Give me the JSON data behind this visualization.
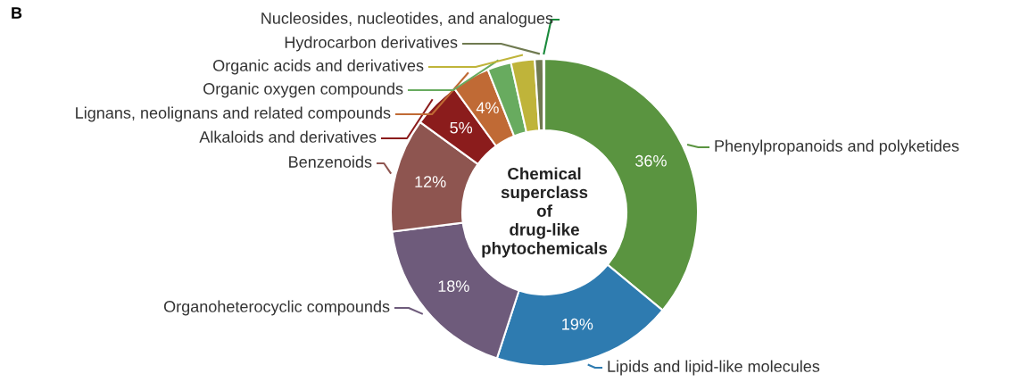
{
  "chart_data": {
    "type": "donut",
    "title": "Chemical\nsuperclass\nof\ndrug-like\nphytochemicals",
    "annotations": [
      "B"
    ],
    "categories": [
      "Phenylpropanoids and polyketides",
      "Lipids and lipid-like molecules",
      "Organoheterocyclic compounds",
      "Benzenoids",
      "Alkaloids and derivatives",
      "Lignans, neolignans and related compounds",
      "Organic oxygen compounds",
      "Organic acids and derivatives",
      "Hydrocarbon derivatives",
      "Nucleosides, nucleotides, and analogues"
    ],
    "values": [
      36,
      19,
      18,
      12,
      5,
      4,
      2.5,
      2.5,
      0.9,
      0.1
    ],
    "value_labels": [
      "36%",
      "19%",
      "18%",
      "12%",
      "5%",
      "4%",
      null,
      null,
      null,
      null
    ],
    "colors": [
      "#5a9440",
      "#2e7bb0",
      "#6e5b7b",
      "#8e5550",
      "#8b1c1c",
      "#c06a35",
      "#68ab5f",
      "#bfb43a",
      "#6f7a50",
      "#1a8a3c"
    ],
    "legend": false
  }
}
